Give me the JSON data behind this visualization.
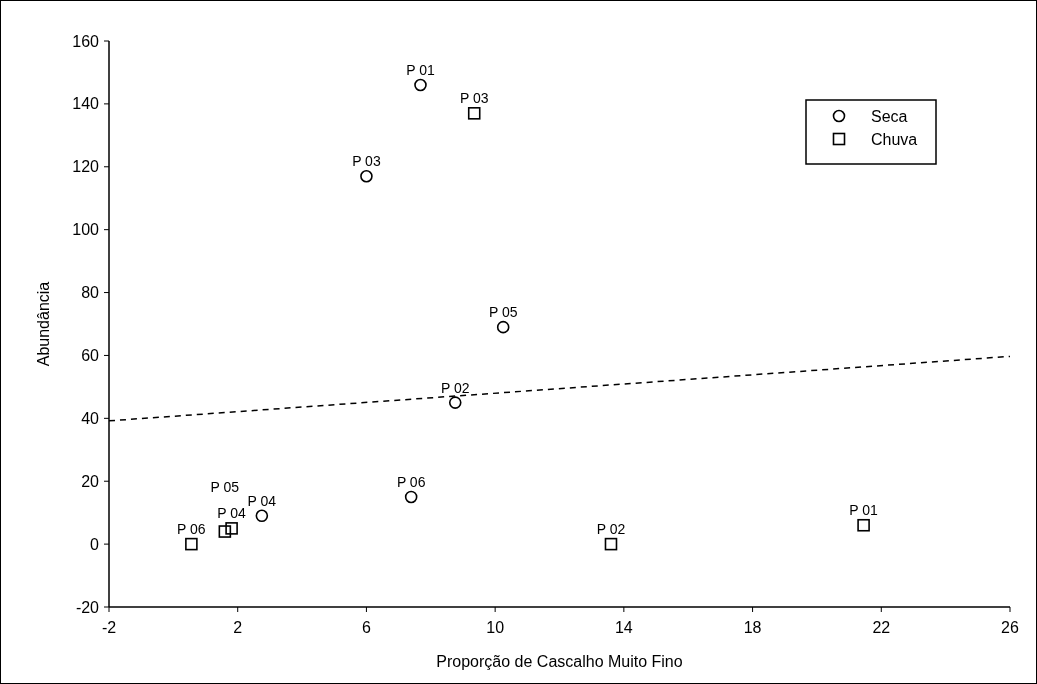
{
  "chart_data": {
    "type": "scatter",
    "xlabel": "Proporção de Cascalho Muito Fino",
    "ylabel": "Abundância",
    "xlim": [
      -2,
      26
    ],
    "xticks": [
      -2,
      2,
      6,
      10,
      14,
      18,
      22,
      26
    ],
    "ylim": [
      -20,
      160
    ],
    "yticks": [
      -20,
      0,
      20,
      40,
      60,
      80,
      100,
      120,
      140,
      160
    ],
    "grid": false,
    "legend": "top right",
    "series": [
      {
        "name": "Seca",
        "color": "#000000",
        "marker": "circle",
        "x": [
          7.68,
          8.76,
          6.0,
          2.75,
          10.25,
          7.39
        ],
        "values": [
          146,
          45,
          117,
          9,
          69,
          15
        ]
      },
      {
        "name": "Chuva",
        "color": "#000000",
        "marker": "square",
        "x": [
          21.45,
          13.6,
          9.35,
          1.81,
          1.6,
          0.56
        ],
        "values": [
          6,
          0,
          137,
          5,
          4,
          0
        ]
      },
      {
        "type": "line",
        "color": "#000000",
        "line_style": "dashed",
        "marker": "none",
        "x": [
          -2,
          26
        ],
        "values": [
          39.2,
          59.7
        ]
      }
    ],
    "annotations": [
      {
        "text": "P 01",
        "x": 7.68,
        "y": 146
      },
      {
        "text": "P 02",
        "x": 8.76,
        "y": 45
      },
      {
        "text": "P 03",
        "x": 6.0,
        "y": 117
      },
      {
        "text": "P 04",
        "x": 2.75,
        "y": 9
      },
      {
        "text": "P 05",
        "x": 10.25,
        "y": 69
      },
      {
        "text": "P 06",
        "x": 7.39,
        "y": 15
      },
      {
        "text": "P 01",
        "x": 21.45,
        "y": 6
      },
      {
        "text": "P 02",
        "x": 13.6,
        "y": 0
      },
      {
        "text": "P 03",
        "x": 9.35,
        "y": 137
      },
      {
        "text": "P 04",
        "x": 1.81,
        "y": 5
      },
      {
        "text": "P 05",
        "x": 1.6,
        "y": 4
      },
      {
        "text": "P 06",
        "x": 0.56,
        "y": 0
      }
    ]
  }
}
